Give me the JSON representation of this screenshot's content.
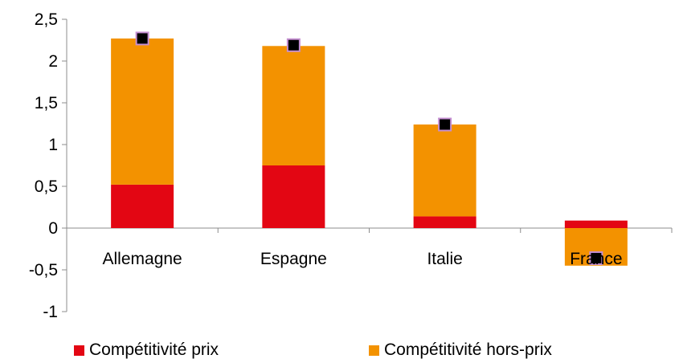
{
  "chart_data": {
    "type": "bar",
    "stacked": true,
    "categories": [
      "Allemagne",
      "Espagne",
      "Italie",
      "France"
    ],
    "series": [
      {
        "name": "Compétitivité prix",
        "color": "#e30613",
        "values": [
          0.52,
          0.75,
          0.14,
          0.09
        ]
      },
      {
        "name": "Compétitivité hors-prix",
        "color": "#f39200",
        "values": [
          1.75,
          1.43,
          1.1,
          -0.45
        ]
      }
    ],
    "totals": {
      "marker": "square",
      "color": "#000000",
      "outline": "#c58fd2",
      "values": [
        2.27,
        2.19,
        1.24,
        -0.36
      ]
    },
    "ylim": [
      -1,
      2.5
    ],
    "yticks": [
      "-1",
      "-0,5",
      "0",
      "0,5",
      "1",
      "1,5",
      "2",
      "2,5"
    ],
    "ytick_values": [
      -1,
      -0.5,
      0,
      0.5,
      1,
      1.5,
      2,
      2.5
    ],
    "grid": false,
    "legend_position": "bottom",
    "title": "",
    "xlabel": "",
    "ylabel": ""
  }
}
